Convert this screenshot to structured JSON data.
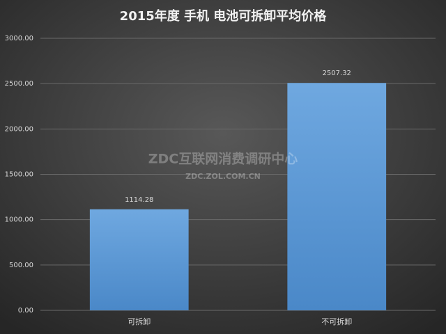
{
  "chart_data": {
    "type": "bar",
    "title": "2015年度 手机 电池可拆卸平均价格",
    "categories": [
      "可拆卸",
      "不可拆卸"
    ],
    "values": [
      1114.28,
      2507.32
    ],
    "color": "#5b9bd5",
    "ylim": [
      0,
      3000
    ],
    "yticks": [
      {
        "value": 0,
        "label": "0.00"
      },
      {
        "value": 500,
        "label": "500.00"
      },
      {
        "value": 1000,
        "label": "1000.00"
      },
      {
        "value": 1500,
        "label": "1500.00"
      },
      {
        "value": 2000,
        "label": "2000.00"
      },
      {
        "value": 2500,
        "label": "2500.00"
      },
      {
        "value": 3000,
        "label": "3000.00"
      }
    ],
    "grid": true,
    "watermark": {
      "title": "ZDC互联网消费调研中心",
      "site": "ZDC.ZOL.COM.CN"
    }
  }
}
